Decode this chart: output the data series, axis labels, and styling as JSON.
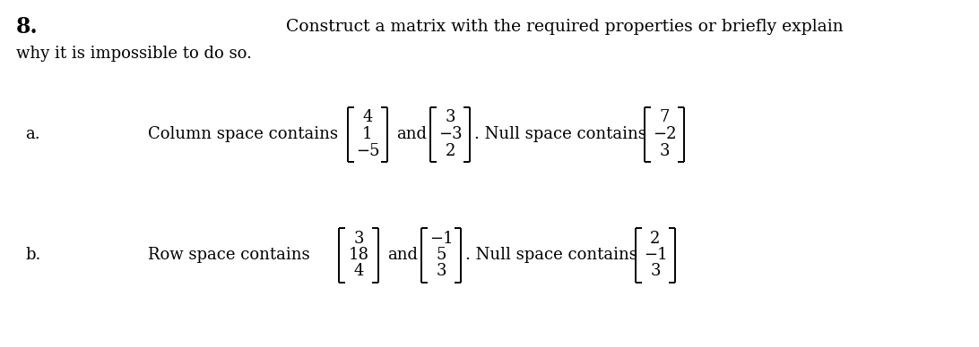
{
  "title_number": "8.",
  "title_text": "Construct a matrix with the required properties or briefly explain",
  "subtitle_text": "why it is impossible to do so.",
  "part_a_label": "a.",
  "part_b_label": "b.",
  "part_a_text1": "Column space contains",
  "part_a_vec1": [
    "4",
    "1",
    "−5"
  ],
  "part_a_and": "and",
  "part_a_vec2": [
    "3",
    "−3",
    "2"
  ],
  "part_a_period": ". Null space contains",
  "part_a_vec3": [
    "7",
    "−2",
    "3"
  ],
  "part_b_text1": "Row space contains",
  "part_b_vec1": [
    "3",
    "18",
    "4"
  ],
  "part_b_and": "and",
  "part_b_vec2": [
    "−1",
    "5",
    "3"
  ],
  "part_b_period": ". Null space contains",
  "part_b_vec3": [
    "2",
    "−1",
    "3"
  ],
  "bg_color": "#ffffff",
  "text_color": "#000000",
  "font_size_number": 17,
  "font_size_title": 13.5,
  "font_size_body": 13,
  "font_size_vector": 13
}
